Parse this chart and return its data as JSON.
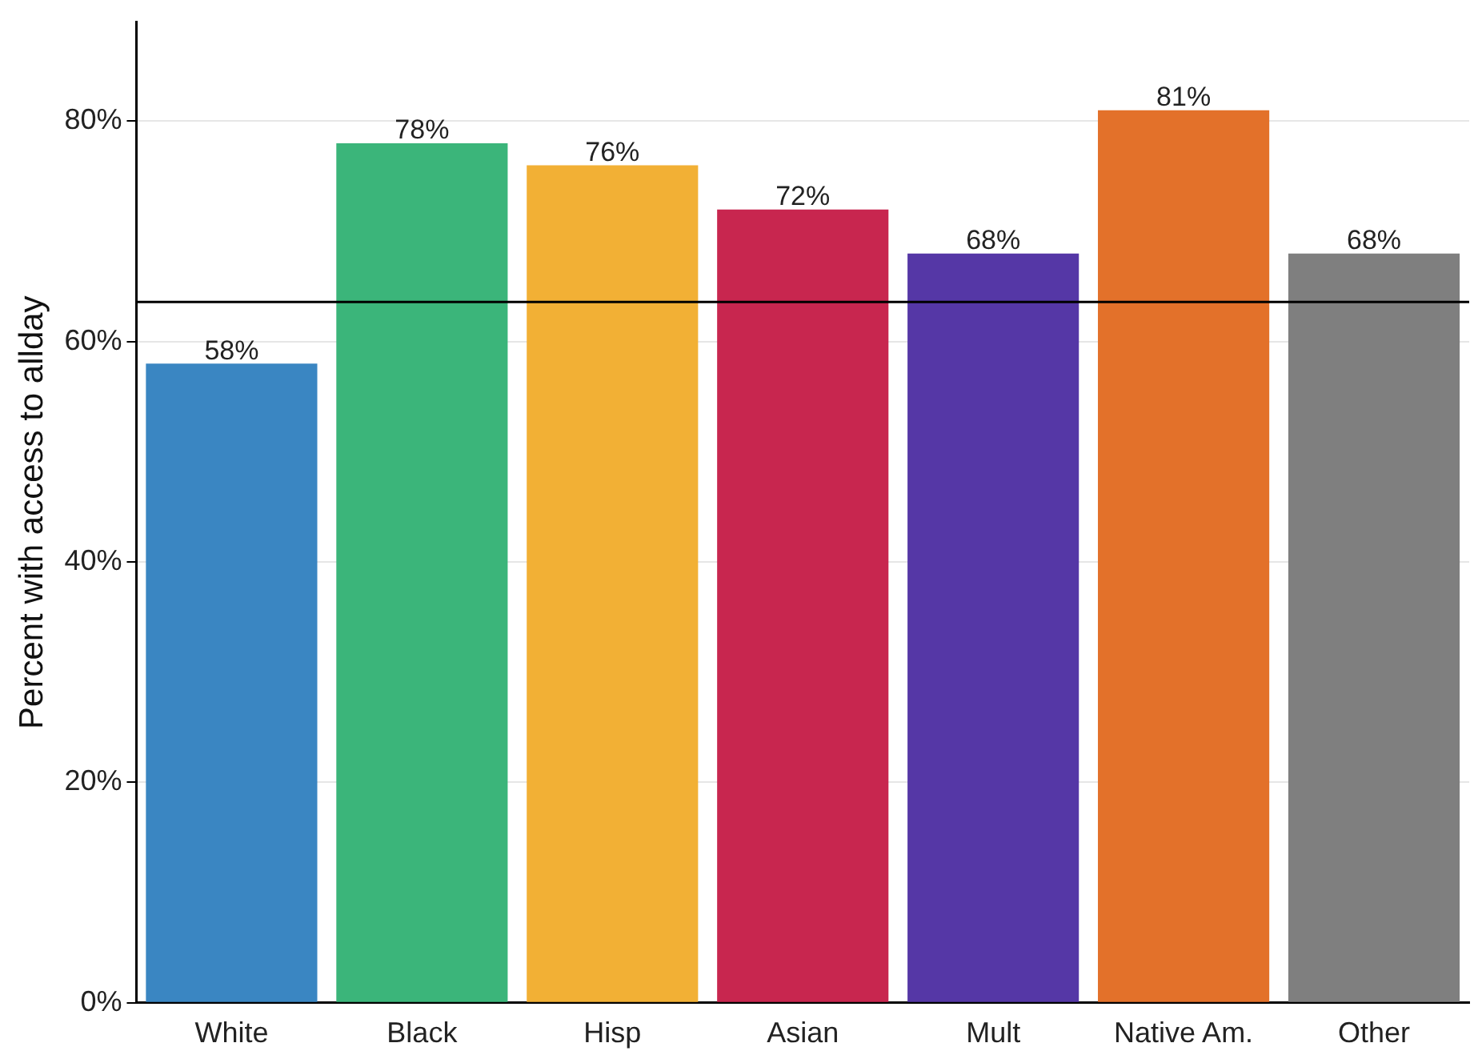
{
  "chart_data": {
    "type": "bar",
    "ylabel": "Percent with access to allday",
    "categories": [
      "White",
      "Black",
      "Hisp",
      "Asian",
      "Mult",
      "Native Am.",
      "Other"
    ],
    "values": [
      58,
      78,
      76,
      72,
      68,
      81,
      68
    ],
    "colors": [
      "#3a86c2",
      "#3bb57a",
      "#f2b035",
      "#c8264f",
      "#5537a6",
      "#e3712a",
      "#7f7f7f"
    ],
    "value_labels": [
      "58%",
      "78%",
      "76%",
      "72%",
      "68%",
      "81%",
      "68%"
    ],
    "ylim": [
      0,
      89
    ],
    "yticks": [
      {
        "value": 0,
        "label": "0%"
      },
      {
        "value": 20,
        "label": "20%"
      },
      {
        "value": 40,
        "label": "40%"
      },
      {
        "value": 60,
        "label": "60%"
      },
      {
        "value": 80,
        "label": "80%"
      }
    ],
    "ref_lines": [
      {
        "axis": "y",
        "value": 63.6,
        "color": "#000000"
      }
    ],
    "grid": "y",
    "legend": false
  }
}
